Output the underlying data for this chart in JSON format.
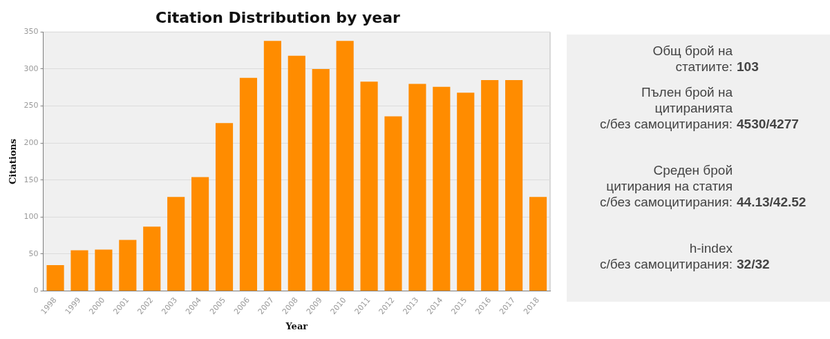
{
  "chart_data": [
    {
      "type": "bar",
      "title": "Citation Distribution by year",
      "xlabel": "Year",
      "ylabel": "Citations",
      "categories": [
        "1998",
        "1999",
        "2000",
        "2001",
        "2002",
        "2003",
        "2004",
        "2005",
        "2006",
        "2007",
        "2008",
        "2009",
        "2010",
        "2011",
        "2012",
        "2013",
        "2014",
        "2015",
        "2016",
        "2017",
        "2018"
      ],
      "values": [
        35,
        55,
        56,
        69,
        87,
        127,
        154,
        227,
        288,
        338,
        318,
        300,
        338,
        283,
        236,
        280,
        276,
        268,
        285,
        285,
        127
      ],
      "color": "#ff8c00",
      "ylim": [
        0,
        350
      ],
      "yticks": [
        0,
        50,
        100,
        150,
        200,
        250,
        300,
        350
      ],
      "grid": "y",
      "legend": false
    },
    {
      "type": "other",
      "annotations": [
        "Общ брой на\nстатиите: 103",
        "Пълен брой на\nцитиранията\nс/без самоцитирания: 4530/4277",
        "Среден брой\nцитирания на статия\nс/без самоцитирания: 44.13/42.52",
        "h-index\nс/без самоцитирания: 32/32"
      ]
    }
  ]
}
